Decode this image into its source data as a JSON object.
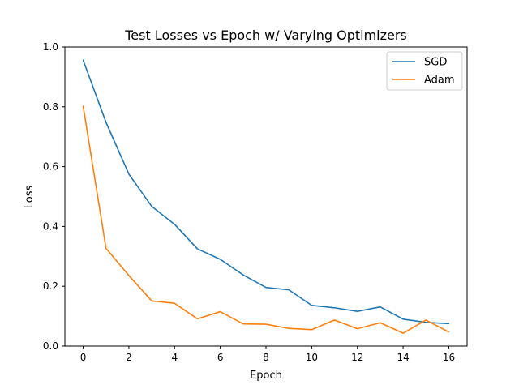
{
  "chart_data": {
    "type": "line",
    "title": "Test Losses vs Epoch w/ Varying Optimizers",
    "xlabel": "Epoch",
    "ylabel": "Loss",
    "xlim": [
      -0.8,
      16.8
    ],
    "ylim": [
      0.0,
      1.0
    ],
    "xticks": [
      0,
      2,
      4,
      6,
      8,
      10,
      12,
      14,
      16
    ],
    "xtick_labels": [
      "0",
      "2",
      "4",
      "6",
      "8",
      "10",
      "12",
      "14",
      "16"
    ],
    "yticks": [
      0.0,
      0.2,
      0.4,
      0.6,
      0.8,
      1.0
    ],
    "ytick_labels": [
      "0.0",
      "0.2",
      "0.4",
      "0.6",
      "0.8",
      "1.0"
    ],
    "grid": false,
    "legend_position": "top-right",
    "x": [
      0,
      1,
      2,
      3,
      4,
      5,
      6,
      7,
      8,
      9,
      10,
      11,
      12,
      13,
      14,
      15,
      16
    ],
    "series": [
      {
        "name": "SGD",
        "color": "#1f77b4",
        "values": [
          0.956,
          0.748,
          0.575,
          0.467,
          0.407,
          0.325,
          0.29,
          0.238,
          0.196,
          0.188,
          0.136,
          0.128,
          0.116,
          0.131,
          0.09,
          0.079,
          0.075
        ]
      },
      {
        "name": "Adam",
        "color": "#ff7f0e",
        "values": [
          0.802,
          0.327,
          0.236,
          0.151,
          0.143,
          0.091,
          0.115,
          0.074,
          0.073,
          0.059,
          0.055,
          0.087,
          0.058,
          0.078,
          0.043,
          0.087,
          0.047
        ]
      }
    ]
  }
}
